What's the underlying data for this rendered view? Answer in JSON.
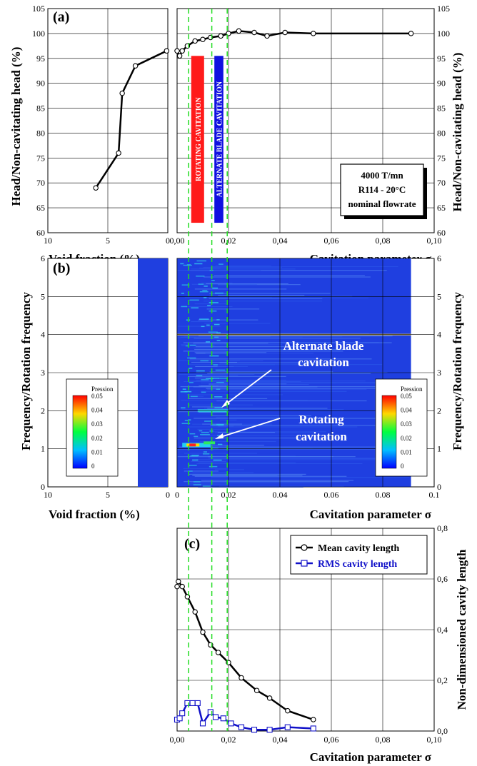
{
  "panel_a": {
    "label": "(a)",
    "ylabel_left": "Head/Non-cavitating head (%)",
    "ylabel_right": "Head/Non-cavitating head (%)",
    "xlabel_left": "Void fraction (%)",
    "xlabel_right": "Cavitation parameter σ",
    "band_rotating": "ROTATING CAVITATION",
    "band_alternate": "ALTERNATE BLADE CAVITATION",
    "info_box": [
      "4000 T/mn",
      "R114 - 20°C",
      "nominal flowrate"
    ]
  },
  "panel_b": {
    "label": "(b)",
    "ylabel_left": "Frequency/Rotation frequency",
    "ylabel_right": "Frequency/Rotation frequency",
    "xlabel_left": "Void fraction (%)",
    "xlabel_right": "Cavitation parameter σ",
    "annotation_alternate": [
      "Alternate blade",
      "cavitation"
    ],
    "annotation_rotating": [
      "Rotating",
      "cavitation"
    ],
    "colorbar_title": "Pression",
    "colorbar_ticks": [
      "0.05",
      "0.04",
      "0.03",
      "0.02",
      "0.01",
      "0"
    ]
  },
  "panel_c": {
    "label": "(c)",
    "ylabel": "Non-dimensioned cavity length",
    "xlabel": "Cavitation parameter σ"
  },
  "colors": {
    "mean_line": "#000000",
    "rms_line": "#1010c8",
    "green_dash": "#22dd22",
    "band_red": "#ff1a1a",
    "band_blue": "#1010e0",
    "spectrum_bg": "#1f3fe0"
  },
  "chart_data": [
    {
      "type": "line",
      "panel": "a-left",
      "x_axis": "Void fraction (%)",
      "xlim": [
        10,
        0
      ],
      "ylim": [
        60,
        105
      ],
      "x_ticks": [
        "10",
        "5",
        "0"
      ],
      "y_ticks": [
        "60",
        "65",
        "70",
        "75",
        "80",
        "85",
        "90",
        "95",
        "100",
        "105"
      ],
      "series": [
        {
          "x": [
            6.0,
            4.1,
            3.8,
            2.7,
            0.1
          ],
          "values": [
            69,
            76,
            88,
            93.5,
            96.5
          ]
        }
      ]
    },
    {
      "type": "line",
      "panel": "a-right",
      "xlabel": "Cavitation parameter σ",
      "xlim": [
        0,
        0.1
      ],
      "ylim": [
        60,
        105
      ],
      "x_ticks": [
        "0,00",
        "0,02",
        "0,04",
        "0,06",
        "0,08",
        "0,10"
      ],
      "y_ticks": [
        "60",
        "65",
        "70",
        "75",
        "80",
        "85",
        "90",
        "95",
        "100",
        "105"
      ],
      "series": [
        {
          "x": [
            0.0,
            0.001,
            0.002,
            0.004,
            0.007,
            0.01,
            0.013,
            0.017,
            0.02,
            0.024,
            0.03,
            0.035,
            0.042,
            0.053,
            0.091
          ],
          "values": [
            96.5,
            95.5,
            96.5,
            97.5,
            98.5,
            98.8,
            99.2,
            99.5,
            100.0,
            100.5,
            100.2,
            99.5,
            100.2,
            100.0,
            100.0
          ]
        }
      ],
      "bands": [
        {
          "name": "ROTATING CAVITATION",
          "x_range": [
            0.0055,
            0.0105
          ],
          "y_range": [
            62,
            95.5
          ]
        },
        {
          "name": "ALTERNATE BLADE CAVITATION",
          "x_range": [
            0.0145,
            0.018
          ],
          "y_range": [
            62,
            95.5
          ]
        }
      ]
    },
    {
      "type": "heatmap",
      "panel": "b",
      "ylim": [
        0,
        6
      ],
      "left_xlim": [
        10,
        0
      ],
      "right_xlim": [
        0,
        0.1
      ],
      "left_x_ticks": [
        "10",
        "5",
        "0"
      ],
      "right_x_ticks": [
        "0",
        "0.02",
        "0.04",
        "0.06",
        "0.08",
        "0.1"
      ],
      "y_ticks": [
        "0",
        "1",
        "2",
        "3",
        "4",
        "5",
        "6"
      ],
      "color_range": [
        0,
        0.05
      ],
      "features": [
        {
          "name": "Rotating cavitation",
          "frequency": 1.1,
          "x_range": [
            0.002,
            0.013
          ]
        },
        {
          "name": "Alternate blade cavitation",
          "frequency": 2.0,
          "x_range": [
            0.008,
            0.02
          ]
        },
        {
          "name": "Blade passage",
          "frequency": 4.0,
          "x_range": [
            0.0,
            0.091
          ]
        }
      ]
    },
    {
      "type": "line",
      "panel": "c",
      "xlabel": "Cavitation parameter σ",
      "ylabel": "Non-dimensioned cavity length",
      "xlim": [
        0,
        0.1
      ],
      "ylim": [
        0,
        0.8
      ],
      "x_ticks": [
        "0,00",
        "0,02",
        "0,04",
        "0,06",
        "0,08",
        "0,10"
      ],
      "y_ticks": [
        "0,0",
        "0,2",
        "0,4",
        "0,6",
        "0,8"
      ],
      "legend_position": "top-right",
      "series": [
        {
          "name": "Mean cavity length",
          "x": [
            0.0,
            0.0005,
            0.002,
            0.004,
            0.007,
            0.01,
            0.013,
            0.016,
            0.02,
            0.025,
            0.031,
            0.036,
            0.043,
            0.053
          ],
          "values": [
            0.57,
            0.59,
            0.57,
            0.53,
            0.47,
            0.39,
            0.34,
            0.31,
            0.27,
            0.21,
            0.16,
            0.13,
            0.08,
            0.045
          ]
        },
        {
          "name": "RMS cavity length",
          "x": [
            0.0,
            0.001,
            0.002,
            0.004,
            0.006,
            0.008,
            0.01,
            0.013,
            0.015,
            0.018,
            0.021,
            0.025,
            0.03,
            0.036,
            0.043,
            0.053
          ],
          "values": [
            0.045,
            0.05,
            0.07,
            0.11,
            0.11,
            0.11,
            0.03,
            0.075,
            0.055,
            0.05,
            0.03,
            0.015,
            0.005,
            0.005,
            0.015,
            0.01
          ]
        }
      ]
    }
  ]
}
